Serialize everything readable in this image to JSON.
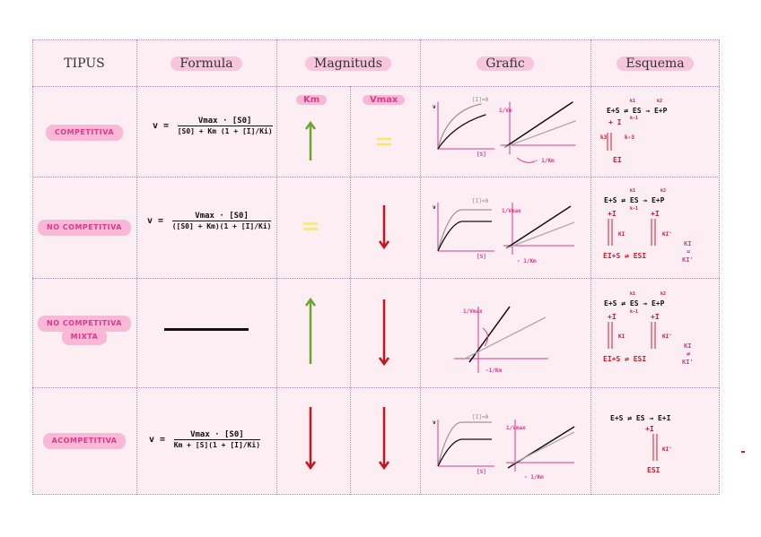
{
  "headers": {
    "tipus": "TIPUS",
    "formula": "Formula",
    "magnituds": "Magnituds",
    "grafic": "Grafic",
    "esquema": "Esquema"
  },
  "magnitude_subheaders": {
    "km": "Km",
    "vmax": "Vmax"
  },
  "rows": [
    {
      "type": "COMPETITIVA",
      "km": "up",
      "vmax": "equal",
      "formula": {
        "lhs": "v =",
        "num": "Vmax · [S0]",
        "den": "[S0] + Km (1 + [I]/Ki)"
      },
      "graph_labels": {
        "curve": "[I]=0",
        "x": "[S]",
        "y": "v",
        "slope": "1/Vm",
        "intercept": "- 1/Km"
      },
      "scheme": {
        "l1": "E+S ⇄ ES → E+P",
        "k1": "k1",
        "km1": "k-1",
        "k2": "k2",
        "plus": "+ I",
        "ki": "k3",
        "kmi": "k-3",
        "bottom": "EI"
      }
    },
    {
      "type": "NO COMPETITIVA",
      "km": "equal",
      "vmax": "down",
      "formula": {
        "lhs": "v =",
        "num": "Vmax · [S0]",
        "den": "([S0] + Km)(1 + [I]/Ki)"
      },
      "graph_labels": {
        "curve": "[I]=0",
        "x": "[S]",
        "y": "v",
        "slope": "1/Vmax",
        "intercept": "- 1/Km"
      },
      "scheme": {
        "l1": "E+S ⇄ ES → E+P",
        "k1": "k1",
        "km1": "k-1",
        "k2": "k2",
        "plus": "+I",
        "plus2": "+I",
        "ki": "KI",
        "ki2": "KI'",
        "bottom": "EI+S ⇄ ESI",
        "note1": "KI",
        "note2": "=",
        "note3": "KI'"
      }
    },
    {
      "type": "NO COMPETITIVA",
      "type2": "MIXTA",
      "km": "up",
      "vmax": "down",
      "formula": {
        "lhs": "",
        "num": "",
        "den": ""
      },
      "graph_labels": {
        "slope": "1/Vmax",
        "intercept": "-1/Km"
      },
      "scheme": {
        "l1": "E+S ⇄ ES → E+P",
        "k1": "k1",
        "km1": "k-1",
        "k2": "k2",
        "plus": "+I",
        "plus2": "+I",
        "ki": "KI",
        "ki2": "KI'",
        "bottom": "EI+S ⇄ ESI",
        "note1": "KI",
        "note2": "≠",
        "note3": "KI'"
      }
    },
    {
      "type": "ACOMPETITIVA",
      "km": "down",
      "vmax": "down",
      "formula": {
        "lhs": "v =",
        "num": "Vmax · [S0]",
        "den": "Km + [S](1 + [I]/Ki)"
      },
      "graph_labels": {
        "curve": "[I]=0",
        "x": "[S]",
        "y": "v",
        "slope": "1/Vmax",
        "intercept": "- 1/Km"
      },
      "scheme": {
        "l1": "E+S ⇄ ES → E+I",
        "plus": "+I",
        "ki": "KI'",
        "bottom": "ESI"
      }
    }
  ],
  "colors": {
    "pink": "#e0388a",
    "green": "#6aa52c",
    "red": "#c7141d",
    "yellow": "#f4e96a",
    "grid": "#e27bb0"
  }
}
